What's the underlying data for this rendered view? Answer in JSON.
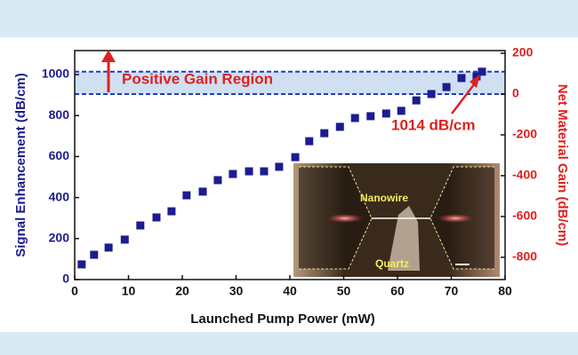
{
  "chart_data": {
    "type": "scatter",
    "x_label": "Launched Pump Power (mW)",
    "y_label": "Signal Enhancement (dB/cm)",
    "y2_label": "Net Material Gain (dB/cm)",
    "x": [
      1.3,
      3.6,
      6.3,
      9.3,
      12.2,
      15.2,
      18.0,
      20.8,
      23.8,
      26.6,
      29.4,
      32.4,
      35.2,
      38.0,
      41.0,
      43.6,
      46.4,
      49.3,
      52.1,
      55.0,
      57.9,
      60.7,
      63.5,
      66.3,
      69.1,
      71.9,
      74.7,
      75.7
    ],
    "series": [
      {
        "name": "Signal Enhancement",
        "color": "#1c1c8e",
        "values": [
          74,
          121,
          156,
          195,
          264,
          303,
          333,
          411,
          429,
          485,
          515,
          528,
          528,
          550,
          597,
          675,
          714,
          745,
          788,
          797,
          810,
          823,
          874,
          905,
          939,
          983,
          991,
          1014
        ]
      }
    ],
    "xlim": [
      0,
      80
    ],
    "xticks": [
      0,
      10,
      20,
      30,
      40,
      50,
      60,
      70,
      80
    ],
    "ylim": [
      0,
      1117
    ],
    "yticks": [
      0,
      200,
      400,
      600,
      800,
      1000
    ],
    "y2lim": [
      -909,
      213
    ],
    "y2ticks": [
      -800,
      -600,
      -400,
      -200,
      0,
      200
    ],
    "gain_band": [
      905,
      1014
    ],
    "annotations": [
      "Positive Gain Region",
      "1014 dB/cm"
    ],
    "inset_labels": [
      "Nanowire",
      "Quartz"
    ]
  }
}
